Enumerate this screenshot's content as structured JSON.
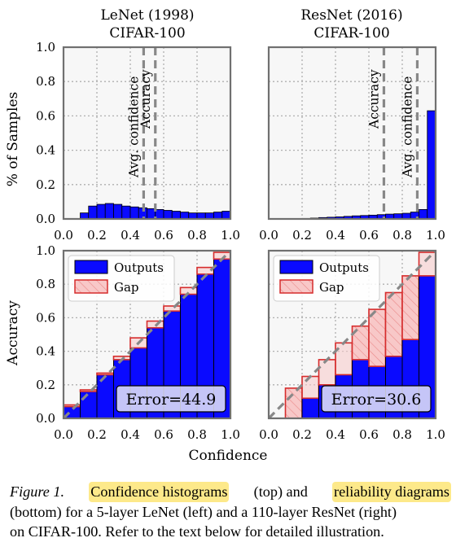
{
  "colors": {
    "outputs_fill": "#0a0aff",
    "gap_fill": "#f8c8c8",
    "gap_edge": "#d62c2c",
    "panel_bg": "#f7f7f7",
    "diagonal": "#888888",
    "caption_highlight": "#fde98a"
  },
  "chart_data": [
    {
      "type": "bar",
      "title": "LeNet (1998)",
      "subtitle": "CIFAR-100",
      "xlabel": "",
      "ylabel": "% of Samples",
      "xlim": [
        0,
        1
      ],
      "ylim": [
        0,
        1
      ],
      "xticks": [
        "0.0",
        "0.2",
        "0.4",
        "0.6",
        "0.8",
        "1.0"
      ],
      "yticks": [
        "0.0",
        "0.2",
        "0.4",
        "0.6",
        "0.8",
        "1.0"
      ],
      "grid": true,
      "bin_width": 0.05,
      "bins": [
        0.05,
        0.1,
        0.15,
        0.2,
        0.25,
        0.3,
        0.35,
        0.4,
        0.45,
        0.5,
        0.55,
        0.6,
        0.65,
        0.7,
        0.75,
        0.8,
        0.85,
        0.9,
        0.95
      ],
      "values": [
        0.0,
        0.035,
        0.075,
        0.085,
        0.09,
        0.085,
        0.075,
        0.07,
        0.065,
        0.06,
        0.055,
        0.05,
        0.045,
        0.04,
        0.035,
        0.035,
        0.035,
        0.04,
        0.045
      ],
      "vlines": [
        {
          "label": "Avg. confidence",
          "x": 0.48
        },
        {
          "label": "Accuracy",
          "x": 0.55
        }
      ]
    },
    {
      "type": "bar",
      "title": "ResNet (2016)",
      "subtitle": "CIFAR-100",
      "xlabel": "",
      "ylabel": "",
      "xlim": [
        0,
        1
      ],
      "ylim": [
        0,
        1
      ],
      "xticks": [
        "0.0",
        "0.2",
        "0.4",
        "0.6",
        "0.8",
        "1.0"
      ],
      "grid": true,
      "bin_width": 0.05,
      "bins": [
        0.05,
        0.1,
        0.15,
        0.2,
        0.25,
        0.3,
        0.35,
        0.4,
        0.45,
        0.5,
        0.55,
        0.6,
        0.65,
        0.7,
        0.75,
        0.8,
        0.85,
        0.9,
        0.95
      ],
      "values": [
        0.0,
        0.0,
        0.0,
        0.003,
        0.005,
        0.008,
        0.01,
        0.012,
        0.015,
        0.018,
        0.02,
        0.022,
        0.025,
        0.028,
        0.03,
        0.033,
        0.04,
        0.055,
        0.63
      ],
      "vlines": [
        {
          "label": "Accuracy",
          "x": 0.69
        },
        {
          "label": "Avg. confidence",
          "x": 0.89
        }
      ]
    },
    {
      "type": "bar",
      "title": "",
      "xlabel": "Confidence",
      "ylabel": "Accuracy",
      "xlim": [
        0,
        1
      ],
      "ylim": [
        0,
        1
      ],
      "xticks": [
        "0.0",
        "0.2",
        "0.4",
        "0.6",
        "0.8",
        "1.0"
      ],
      "yticks": [
        "0.0",
        "0.2",
        "0.4",
        "0.6",
        "0.8",
        "1.0"
      ],
      "grid": true,
      "bin_width": 0.1,
      "bins": [
        0.0,
        0.1,
        0.2,
        0.3,
        0.4,
        0.5,
        0.6,
        0.7,
        0.8,
        0.9
      ],
      "series": [
        {
          "name": "Outputs",
          "values": [
            0.07,
            0.16,
            0.26,
            0.35,
            0.42,
            0.54,
            0.64,
            0.74,
            0.86,
            0.95
          ]
        },
        {
          "name": "Gap",
          "values": [
            0.08,
            0.17,
            0.27,
            0.37,
            0.48,
            0.58,
            0.67,
            0.78,
            0.9,
            0.99
          ]
        }
      ],
      "diagonal": true,
      "annotation": "Error=44.9",
      "legend_position": "top-left"
    },
    {
      "type": "bar",
      "title": "",
      "xlabel": "",
      "ylabel": "",
      "xlim": [
        0,
        1
      ],
      "ylim": [
        0,
        1
      ],
      "xticks": [
        "0.0",
        "0.2",
        "0.4",
        "0.6",
        "0.8",
        "1.0"
      ],
      "grid": true,
      "bin_width": 0.1,
      "bins": [
        0.0,
        0.1,
        0.2,
        0.3,
        0.4,
        0.5,
        0.6,
        0.7,
        0.8,
        0.9
      ],
      "series": [
        {
          "name": "Outputs",
          "values": [
            0.0,
            0.0,
            0.12,
            0.2,
            0.26,
            0.35,
            0.31,
            0.37,
            0.47,
            0.85
          ]
        },
        {
          "name": "Gap",
          "values": [
            0.0,
            0.18,
            0.25,
            0.35,
            0.45,
            0.55,
            0.65,
            0.75,
            0.85,
            0.99
          ]
        }
      ],
      "diagonal": true,
      "annotation": "Error=30.6",
      "legend_position": "top-left"
    }
  ],
  "caption": {
    "label": "Figure 1.",
    "hl1": "Confidence histograms",
    "t1": "(top) and",
    "hl2": "reliability diagrams",
    "line2": "(bottom) for a 5-layer LeNet (left) and a 110-layer ResNet (right)",
    "line3": "on CIFAR-100. Refer to the text below for detailed illustration."
  }
}
